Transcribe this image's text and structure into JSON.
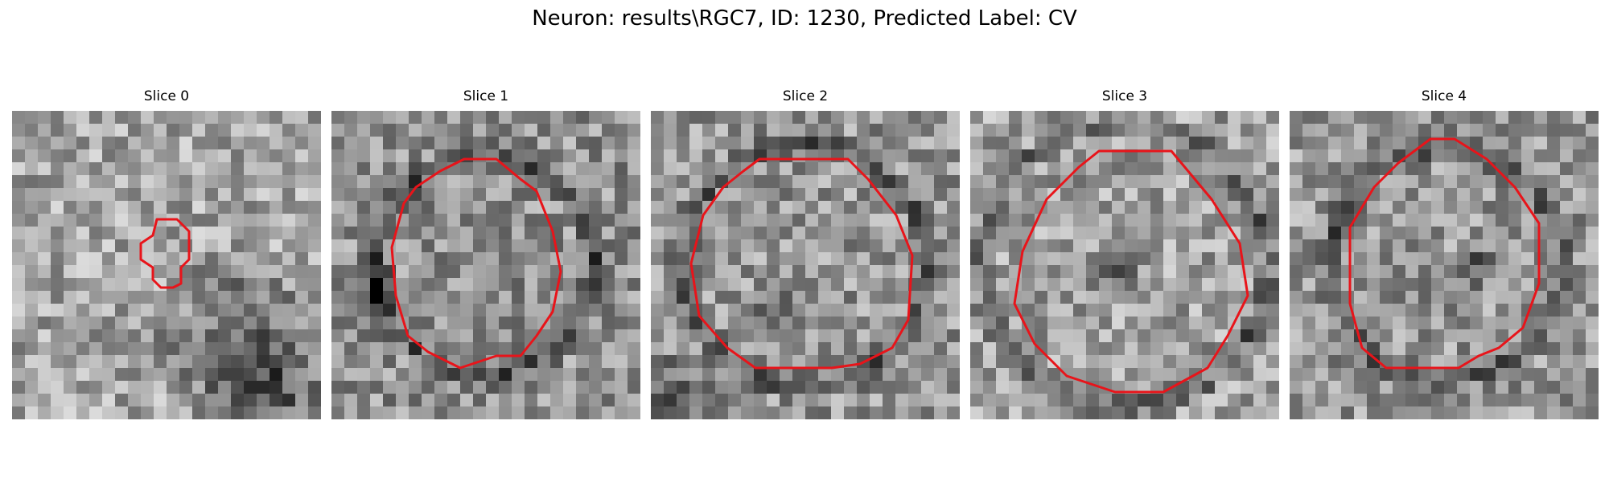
{
  "figure": {
    "title": "Neuron: results\\RGC7, ID: 1230, Predicted Label: CV"
  },
  "panels": [
    {
      "title": "Slice 0"
    },
    {
      "title": "Slice 1"
    },
    {
      "title": "Slice 2"
    },
    {
      "title": "Slice 3"
    },
    {
      "title": "Slice 4"
    }
  ],
  "colors": {
    "contour": "#e8141a",
    "background": "#ffffff"
  }
}
